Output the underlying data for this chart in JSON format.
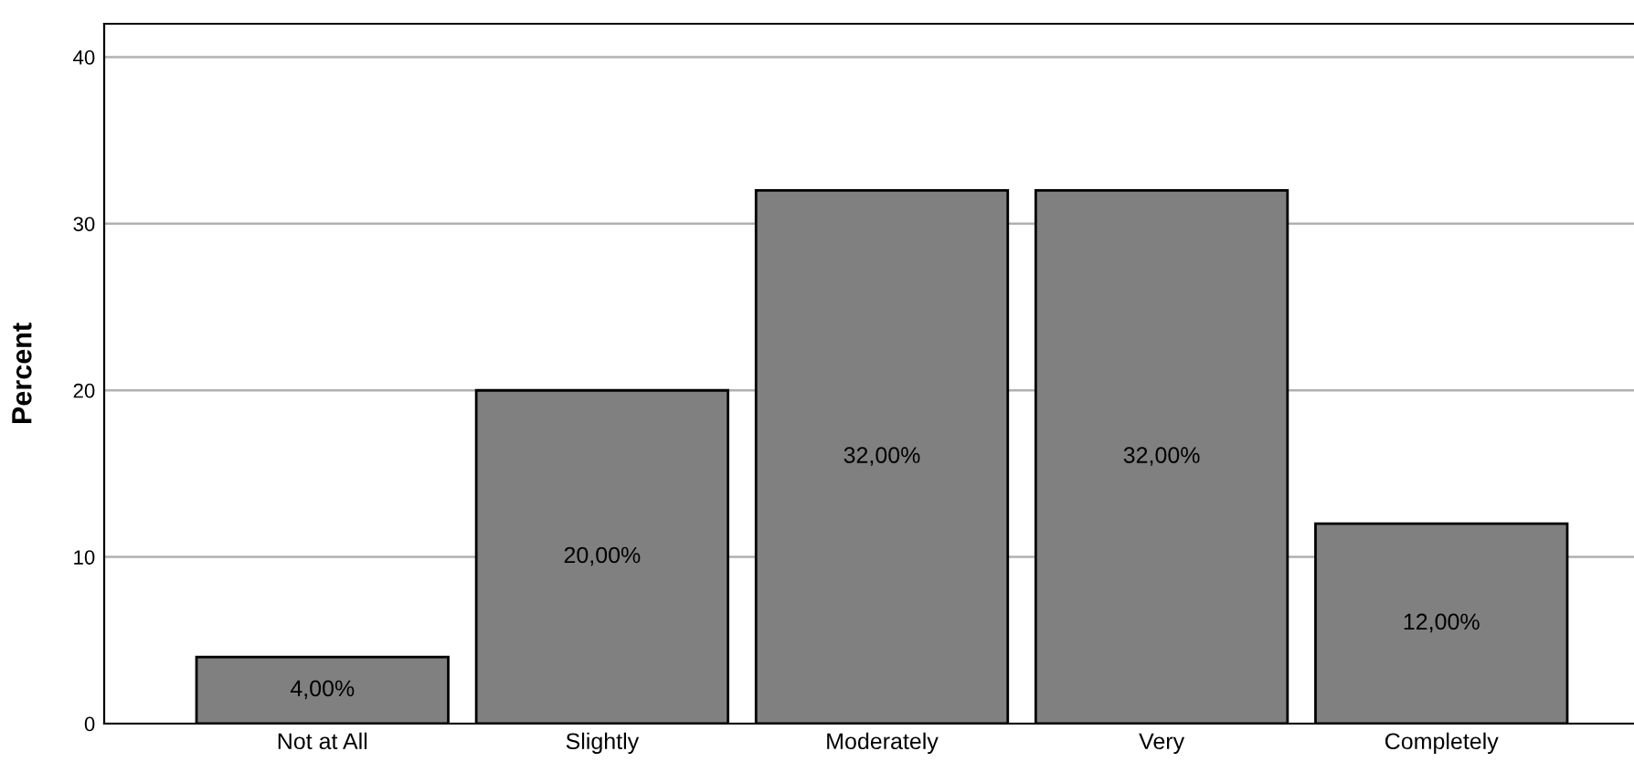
{
  "chart_data": {
    "type": "bar",
    "ylabel": "Percent",
    "categories": [
      "Not at All",
      "Slightly",
      "Moderately",
      "Very",
      "Completely"
    ],
    "values": [
      4,
      20,
      32,
      32,
      12
    ],
    "value_labels": [
      "4,00%",
      "20,00%",
      "32,00%",
      "32,00%",
      "12,00%"
    ],
    "color": "#808080",
    "ylim": [
      0,
      42
    ],
    "yticks": [
      0,
      10,
      20,
      30,
      40
    ],
    "grid": "y",
    "legend": false
  }
}
